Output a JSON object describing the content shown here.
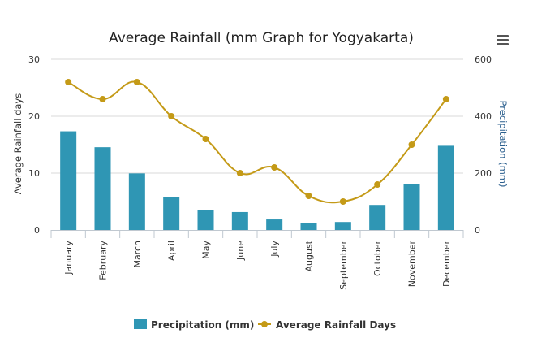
{
  "chart_data": {
    "type": "bar",
    "title": "Average Rainfall (mm Graph for Yogyakarta)",
    "categories": [
      "January",
      "February",
      "March",
      "April",
      "May",
      "June",
      "July",
      "August",
      "September",
      "October",
      "November",
      "December"
    ],
    "series": [
      {
        "name": "Precipitation (mm)",
        "type": "bar",
        "axis": "right",
        "values": [
          347,
          291,
          199,
          117,
          70,
          63,
          37,
          23,
          28,
          88,
          160,
          296
        ]
      },
      {
        "name": "Average Rainfall Days",
        "type": "line",
        "axis": "left",
        "values": [
          26,
          23,
          26,
          20,
          16,
          10,
          11,
          6,
          5,
          8,
          15,
          23
        ]
      }
    ],
    "left_axis": {
      "label": "Average Rainfall days",
      "min": 0,
      "max": 30,
      "ticks": [
        0,
        10,
        20,
        30
      ]
    },
    "right_axis": {
      "label": "Precipitation (mm)",
      "min": 0,
      "max": 600,
      "ticks": [
        0,
        200,
        400,
        600
      ]
    },
    "grid": true,
    "legend_position": "bottom",
    "colors": {
      "bar": "#2f96b4",
      "line": "#c49a17",
      "right_axis_label": "#2b5f8e"
    }
  },
  "menu": {
    "icon": "hamburger-menu-icon"
  }
}
